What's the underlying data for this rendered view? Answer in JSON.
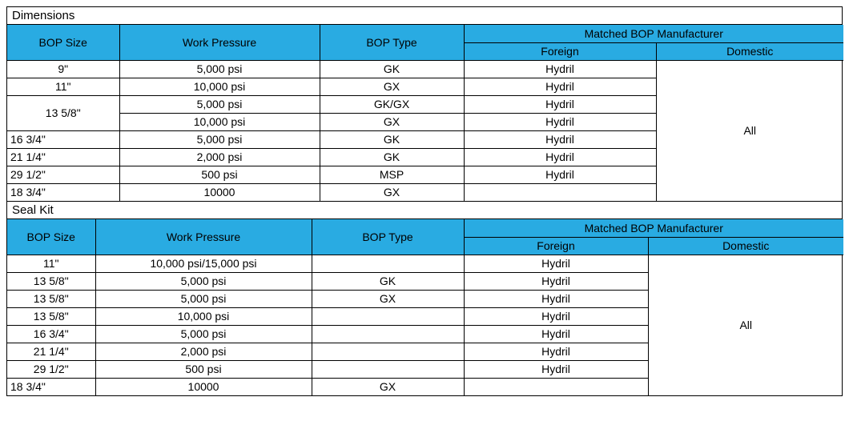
{
  "colors": {
    "header_bg": "#29abe2",
    "border": "#000000",
    "text": "#000000",
    "background": "#ffffff"
  },
  "typography": {
    "font_family": "Arial, sans-serif",
    "body_fontsize_pt": 11,
    "section_fontsize_pt": 12
  },
  "sections": {
    "dimensions": {
      "title": "Dimensions",
      "columns": {
        "bop_size": "BOP Size",
        "work_pressure": "Work Pressure",
        "bop_type": "BOP Type",
        "matched_group": "Matched BOP Manufacturer",
        "foreign": "Foreign",
        "domestic": "Domestic"
      },
      "domestic_all": "All",
      "rows": [
        {
          "size": "9\"",
          "wp": "5,000 psi",
          "type": "GK",
          "foreign": "Hydril",
          "size_align": "center"
        },
        {
          "size": "11\"",
          "wp": "10,000 psi",
          "type": "GX",
          "foreign": "Hydril",
          "size_align": "center"
        },
        {
          "size": "13 5/8\"",
          "wp": "5,000 psi",
          "type": "GK/GX",
          "foreign": "Hydril",
          "size_rowspan": 2,
          "size_align": "center"
        },
        {
          "size": "",
          "wp": "10,000 psi",
          "type": "GX",
          "foreign": "Hydril"
        },
        {
          "size": "16 3/4\"",
          "wp": "5,000 psi",
          "type": "GK",
          "foreign": "Hydril",
          "size_align": "left"
        },
        {
          "size": "21 1/4\"",
          "wp": "2,000 psi",
          "type": "GK",
          "foreign": "Hydril",
          "size_align": "left"
        },
        {
          "size": "29 1/2\"",
          "wp": "500 psi",
          "type": "MSP",
          "foreign": "Hydril",
          "size_align": "left"
        },
        {
          "size": "18 3/4\"",
          "wp": "10000",
          "type": "GX",
          "foreign": "",
          "size_align": "left"
        }
      ]
    },
    "sealkit": {
      "title": "Seal Kit",
      "columns": {
        "bop_size": "BOP Size",
        "work_pressure": "Work Pressure",
        "bop_type": "BOP Type",
        "matched_group": "Matched BOP Manufacturer",
        "foreign": "Foreign",
        "domestic": "Domestic"
      },
      "domestic_all": "All",
      "rows": [
        {
          "size": "11\"",
          "wp": "10,000 psi/15,000 psi",
          "type": "",
          "foreign": "Hydril",
          "size_align": "center"
        },
        {
          "size": "13 5/8\"",
          "wp": "5,000 psi",
          "type": "GK",
          "foreign": "Hydril",
          "size_align": "center"
        },
        {
          "size": "13 5/8\"",
          "wp": "5,000 psi",
          "type": "GX",
          "foreign": "Hydril",
          "size_align": "center"
        },
        {
          "size": "13 5/8\"",
          "wp": "10,000 psi",
          "type": "",
          "foreign": "Hydril",
          "size_align": "center"
        },
        {
          "size": "16 3/4\"",
          "wp": "5,000 psi",
          "type": "",
          "foreign": "Hydril",
          "size_align": "center"
        },
        {
          "size": "21 1/4\"",
          "wp": "2,000 psi",
          "type": "",
          "foreign": "Hydril",
          "size_align": "center"
        },
        {
          "size": "29 1/2\"",
          "wp": "500 psi",
          "type": "",
          "foreign": "Hydril",
          "size_align": "center"
        },
        {
          "size": "18 3/4\"",
          "wp": "10000",
          "type": "GX",
          "foreign": "",
          "size_align": "left"
        }
      ]
    }
  }
}
